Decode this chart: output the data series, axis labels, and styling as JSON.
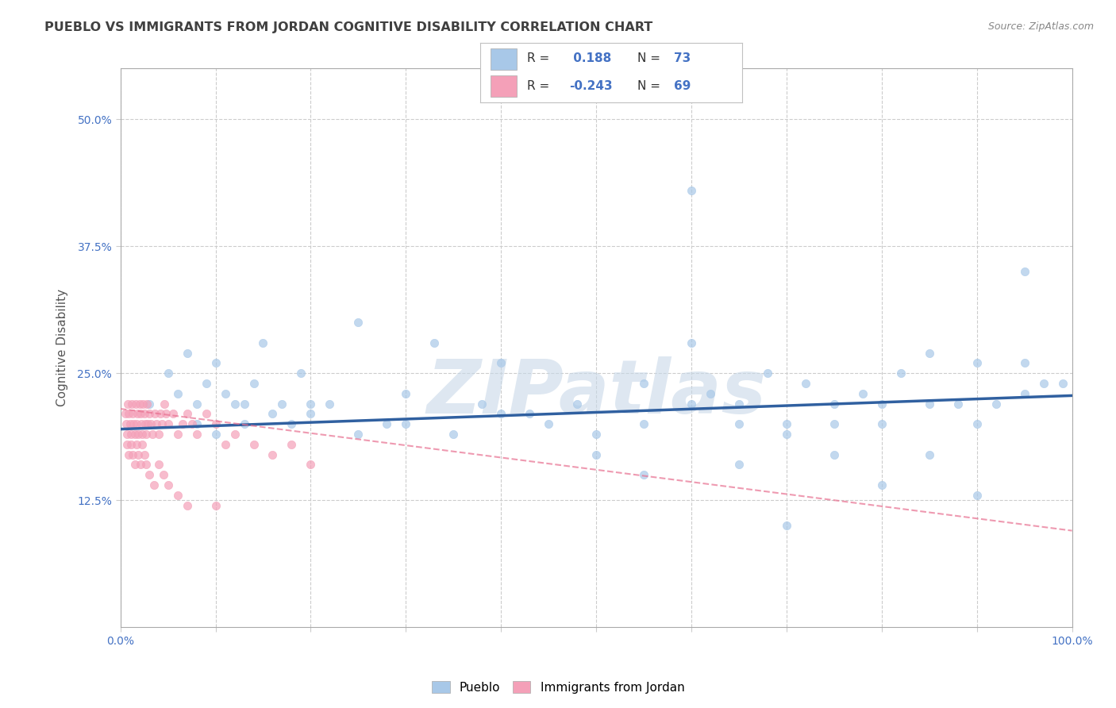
{
  "title": "PUEBLO VS IMMIGRANTS FROM JORDAN COGNITIVE DISABILITY CORRELATION CHART",
  "source": "Source: ZipAtlas.com",
  "ylabel": "Cognitive Disability",
  "xlim": [
    0.0,
    1.0
  ],
  "ylim": [
    0.0,
    0.55
  ],
  "yticks": [
    0.125,
    0.25,
    0.375,
    0.5
  ],
  "ytick_labels": [
    "12.5%",
    "25.0%",
    "37.5%",
    "50.0%"
  ],
  "xticks": [
    0.0,
    0.1,
    0.2,
    0.3,
    0.4,
    0.5,
    0.6,
    0.7,
    0.8,
    0.9,
    1.0
  ],
  "blue_R": 0.188,
  "blue_N": 73,
  "pink_R": -0.243,
  "pink_N": 69,
  "blue_color": "#a8c8e8",
  "pink_color": "#f4a0b8",
  "blue_line_color": "#3060a0",
  "pink_line_color": "#e87090",
  "background_color": "#ffffff",
  "grid_color": "#cccccc",
  "title_color": "#404040",
  "watermark_color": "#c8d8e8",
  "watermark_text": "ZIPatlas",
  "tick_color": "#4472c4",
  "blue_scatter_x": [
    0.03,
    0.05,
    0.06,
    0.07,
    0.08,
    0.09,
    0.1,
    0.11,
    0.12,
    0.13,
    0.14,
    0.15,
    0.17,
    0.19,
    0.2,
    0.22,
    0.25,
    0.28,
    0.3,
    0.33,
    0.38,
    0.4,
    0.43,
    0.45,
    0.48,
    0.5,
    0.55,
    0.6,
    0.62,
    0.65,
    0.68,
    0.7,
    0.72,
    0.75,
    0.78,
    0.8,
    0.82,
    0.85,
    0.88,
    0.9,
    0.92,
    0.95,
    0.97,
    0.99,
    0.08,
    0.1,
    0.13,
    0.16,
    0.18,
    0.2,
    0.25,
    0.3,
    0.35,
    0.4,
    0.5,
    0.55,
    0.6,
    0.65,
    0.7,
    0.75,
    0.8,
    0.85,
    0.9,
    0.95,
    0.6,
    0.7,
    0.8,
    0.9,
    0.95,
    0.85,
    0.75,
    0.65,
    0.55
  ],
  "blue_scatter_y": [
    0.22,
    0.25,
    0.23,
    0.27,
    0.22,
    0.24,
    0.26,
    0.23,
    0.22,
    0.2,
    0.24,
    0.28,
    0.22,
    0.25,
    0.21,
    0.22,
    0.3,
    0.2,
    0.23,
    0.28,
    0.22,
    0.26,
    0.21,
    0.2,
    0.22,
    0.17,
    0.24,
    0.28,
    0.23,
    0.22,
    0.25,
    0.2,
    0.24,
    0.2,
    0.23,
    0.22,
    0.25,
    0.27,
    0.22,
    0.26,
    0.22,
    0.26,
    0.24,
    0.24,
    0.2,
    0.19,
    0.22,
    0.21,
    0.2,
    0.22,
    0.19,
    0.2,
    0.19,
    0.21,
    0.19,
    0.2,
    0.22,
    0.2,
    0.19,
    0.22,
    0.2,
    0.22,
    0.2,
    0.23,
    0.43,
    0.1,
    0.14,
    0.13,
    0.35,
    0.17,
    0.17,
    0.16,
    0.15
  ],
  "pink_scatter_x": [
    0.005,
    0.006,
    0.007,
    0.008,
    0.009,
    0.01,
    0.011,
    0.012,
    0.013,
    0.014,
    0.015,
    0.016,
    0.017,
    0.018,
    0.019,
    0.02,
    0.021,
    0.022,
    0.023,
    0.024,
    0.025,
    0.026,
    0.027,
    0.028,
    0.029,
    0.03,
    0.032,
    0.034,
    0.036,
    0.038,
    0.04,
    0.042,
    0.044,
    0.046,
    0.048,
    0.05,
    0.055,
    0.06,
    0.065,
    0.07,
    0.075,
    0.08,
    0.09,
    0.1,
    0.11,
    0.12,
    0.14,
    0.16,
    0.18,
    0.2,
    0.007,
    0.009,
    0.011,
    0.013,
    0.015,
    0.017,
    0.019,
    0.021,
    0.023,
    0.025,
    0.027,
    0.03,
    0.035,
    0.04,
    0.045,
    0.05,
    0.06,
    0.07,
    0.1
  ],
  "pink_scatter_y": [
    0.21,
    0.2,
    0.19,
    0.22,
    0.21,
    0.2,
    0.19,
    0.22,
    0.21,
    0.2,
    0.19,
    0.22,
    0.2,
    0.21,
    0.19,
    0.22,
    0.21,
    0.2,
    0.19,
    0.22,
    0.21,
    0.2,
    0.19,
    0.22,
    0.2,
    0.21,
    0.2,
    0.19,
    0.21,
    0.2,
    0.19,
    0.21,
    0.2,
    0.22,
    0.21,
    0.2,
    0.21,
    0.19,
    0.2,
    0.21,
    0.2,
    0.19,
    0.21,
    0.2,
    0.18,
    0.19,
    0.18,
    0.17,
    0.18,
    0.16,
    0.18,
    0.17,
    0.18,
    0.17,
    0.16,
    0.18,
    0.17,
    0.16,
    0.18,
    0.17,
    0.16,
    0.15,
    0.14,
    0.16,
    0.15,
    0.14,
    0.13,
    0.12,
    0.12
  ],
  "blue_trend_y_start": 0.195,
  "blue_trend_y_end": 0.228,
  "pink_trend_y_start": 0.215,
  "pink_trend_slope": -0.12
}
